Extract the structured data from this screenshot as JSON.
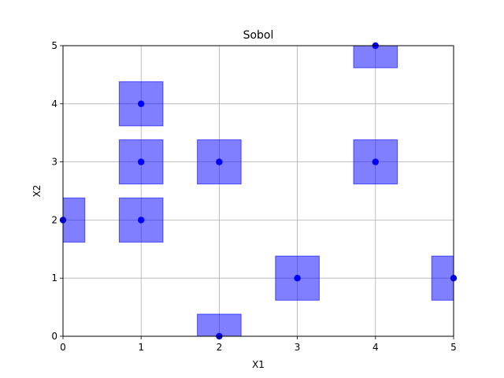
{
  "chart_data": {
    "type": "scatter",
    "title": "Sobol",
    "xlabel": "X1",
    "ylabel": "X2",
    "xlim": [
      0,
      5
    ],
    "ylim": [
      0,
      5
    ],
    "xticks": [
      0,
      1,
      2,
      3,
      4,
      5
    ],
    "yticks": [
      0,
      1,
      2,
      3,
      4,
      5
    ],
    "grid": true,
    "points": [
      {
        "x": 0,
        "y": 2
      },
      {
        "x": 1,
        "y": 2
      },
      {
        "x": 1,
        "y": 3
      },
      {
        "x": 1,
        "y": 4
      },
      {
        "x": 2,
        "y": 0
      },
      {
        "x": 2,
        "y": 3
      },
      {
        "x": 3,
        "y": 1
      },
      {
        "x": 4,
        "y": 3
      },
      {
        "x": 4,
        "y": 5
      },
      {
        "x": 5,
        "y": 1
      }
    ],
    "box_half_width": 0.28,
    "box_half_height": 0.38,
    "point_color": "#0000ff",
    "box_fill": "#0000ff",
    "box_opacity": 0.5
  }
}
